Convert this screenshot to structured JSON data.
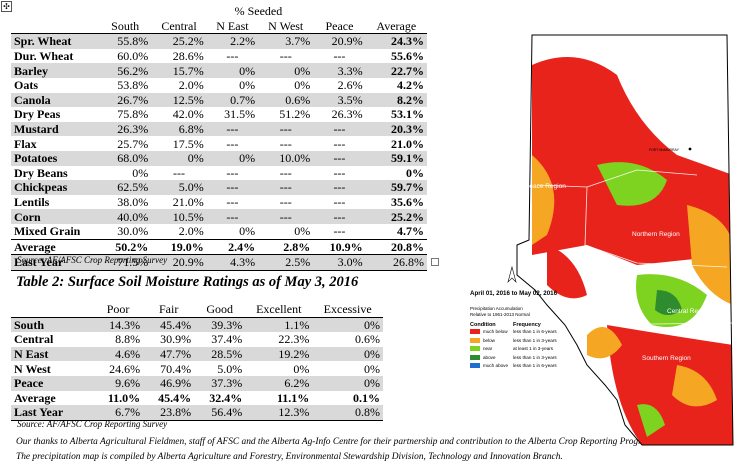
{
  "table1": {
    "group_header": "% Seeded",
    "columns": [
      "South",
      "Central",
      "N East",
      "N West",
      "Peace",
      "Average"
    ],
    "rows": [
      {
        "crop": "Spr. Wheat",
        "values": [
          "55.8%",
          "25.2%",
          "2.2%",
          "3.7%",
          "20.9%",
          "24.3%"
        ],
        "shaded": true
      },
      {
        "crop": "Dur. Wheat",
        "values": [
          "60.0%",
          "28.6%",
          "---",
          "---",
          "---",
          "55.6%"
        ],
        "shaded": false
      },
      {
        "crop": "Barley",
        "values": [
          "56.2%",
          "15.7%",
          "0%",
          "0%",
          "3.3%",
          "22.7%"
        ],
        "shaded": true
      },
      {
        "crop": "Oats",
        "values": [
          "53.8%",
          "2.0%",
          "0%",
          "0%",
          "2.6%",
          "4.2%"
        ],
        "shaded": false
      },
      {
        "crop": "Canola",
        "values": [
          "26.7%",
          "12.5%",
          "0.7%",
          "0.6%",
          "3.5%",
          "8.2%"
        ],
        "shaded": true
      },
      {
        "crop": "Dry Peas",
        "values": [
          "75.8%",
          "42.0%",
          "31.5%",
          "51.2%",
          "26.3%",
          "53.1%"
        ],
        "shaded": false
      },
      {
        "crop": "Mustard",
        "values": [
          "26.3%",
          "6.8%",
          "---",
          "---",
          "---",
          "20.3%"
        ],
        "shaded": true
      },
      {
        "crop": "Flax",
        "values": [
          "25.7%",
          "17.5%",
          "---",
          "---",
          "---",
          "21.0%"
        ],
        "shaded": false
      },
      {
        "crop": "Potatoes",
        "values": [
          "68.0%",
          "0%",
          "0%",
          "10.0%",
          "---",
          "59.1%"
        ],
        "shaded": true
      },
      {
        "crop": "Dry Beans",
        "values": [
          "0%",
          "---",
          "---",
          "---",
          "---",
          "0%"
        ],
        "shaded": false
      },
      {
        "crop": "Chickpeas",
        "values": [
          "62.5%",
          "5.0%",
          "---",
          "---",
          "---",
          "59.7%"
        ],
        "shaded": true
      },
      {
        "crop": "Lentils",
        "values": [
          "38.0%",
          "21.0%",
          "---",
          "---",
          "---",
          "35.6%"
        ],
        "shaded": false
      },
      {
        "crop": "Corn",
        "values": [
          "40.0%",
          "10.5%",
          "---",
          "---",
          "---",
          "25.2%"
        ],
        "shaded": true
      },
      {
        "crop": "Mixed Grain",
        "values": [
          "30.0%",
          "2.0%",
          "0%",
          "0%",
          "---",
          "4.7%"
        ],
        "shaded": false
      }
    ],
    "average_row": {
      "label": "Average",
      "values": [
        "50.2%",
        "19.0%",
        "2.4%",
        "2.8%",
        "10.9%",
        "20.8%"
      ]
    },
    "last_year_row": {
      "label": "Last Year",
      "values": [
        "71.5%",
        "20.9%",
        "4.3%",
        "2.5%",
        "3.0%",
        "26.8%"
      ]
    },
    "source": "Source: AF/AFSC Crop Reporting Survey"
  },
  "table2": {
    "title": "Table 2: Surface Soil Moisture Ratings as of May 3, 2016",
    "columns": [
      "Poor",
      "Fair",
      "Good",
      "Excellent",
      "Excessive"
    ],
    "rows": [
      {
        "region": "South",
        "values": [
          "14.3%",
          "45.4%",
          "39.3%",
          "1.1%",
          "0%"
        ],
        "shaded": true
      },
      {
        "region": "Central",
        "values": [
          "8.8%",
          "30.9%",
          "37.4%",
          "22.3%",
          "0.6%"
        ],
        "shaded": false
      },
      {
        "region": "N East",
        "values": [
          "4.6%",
          "47.7%",
          "28.5%",
          "19.2%",
          "0%"
        ],
        "shaded": true
      },
      {
        "region": "N West",
        "values": [
          "24.6%",
          "70.4%",
          "5.0%",
          "0%",
          "0%"
        ],
        "shaded": false
      },
      {
        "region": "Peace",
        "values": [
          "9.6%",
          "46.9%",
          "37.3%",
          "6.2%",
          "0%"
        ],
        "shaded": true
      }
    ],
    "average_row": {
      "label": "Average",
      "values": [
        "11.0%",
        "45.4%",
        "32.4%",
        "11.1%",
        "0.1%"
      ]
    },
    "last_year_row": {
      "label": "Last Year",
      "values": [
        "6.7%",
        "23.8%",
        "56.4%",
        "12.3%",
        "0.8%"
      ]
    },
    "source": "Source: AF/AFSC Crop Reporting Survey"
  },
  "footnotes": [
    "Our thanks to Alberta Agricultural Fieldmen, staff of AFSC and the Alberta Ag-Info Centre for their partnership and contribution to the Alberta Crop Reporting Program.",
    "The precipitation map is compiled by Alberta Agriculture and Forestry, Environmental Stewardship Division, Technology and Innovation Branch."
  ],
  "map": {
    "region_labels": [
      "Peace Region",
      "Northern Region",
      "Central Region",
      "Southern Region"
    ],
    "city_label": "FORT McMURRAY",
    "date_range": "April 01, 2016 to May 02, 2016",
    "subtitle_line1": "Precipitation Accumulation",
    "subtitle_line2": "Relative to 1961-2013 Normal",
    "legend_condition_header": "Condition",
    "legend_frequency_header": "Frequency",
    "legend": [
      {
        "condition": "much below",
        "frequency": "less than 1 in 6-years",
        "color": "#e8231c"
      },
      {
        "condition": "below",
        "frequency": "less than 1 in 3-years",
        "color": "#f5a623"
      },
      {
        "condition": "near",
        "frequency": "at least 1 in 3-years",
        "color": "#7ed321"
      },
      {
        "condition": "above",
        "frequency": "less than 1 in 3-years",
        "color": "#2e8b2e"
      },
      {
        "condition": "much above",
        "frequency": "less than 1 in 6-years",
        "color": "#1f6fd1"
      }
    ],
    "colors": {
      "much_below": "#e8231c",
      "below": "#f5a623",
      "near": "#7ed321",
      "above": "#2e8b2e",
      "water": "#1f6fd1"
    }
  }
}
